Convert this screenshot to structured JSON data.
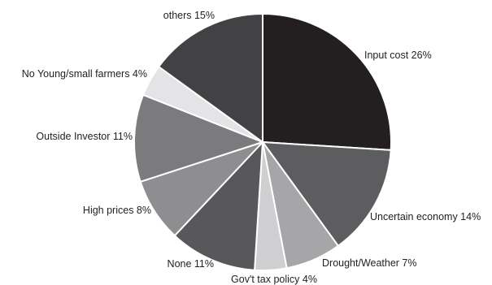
{
  "chart_data": {
    "type": "pie",
    "start_angle_deg": 0,
    "direction": "clockwise",
    "slice_border_color": "#ffffff",
    "slices": [
      {
        "label": "Input cost 26%",
        "value": 26,
        "color": "#231f20"
      },
      {
        "label": "Uncertain economy 14%",
        "value": 14,
        "color": "#5d5d5f"
      },
      {
        "label": "Drought/Weather 7%",
        "value": 7,
        "color": "#a6a6a8"
      },
      {
        "label": "Gov't tax policy 4%",
        "value": 4,
        "color": "#cfcfd1"
      },
      {
        "label": "None 11%",
        "value": 11,
        "color": "#58585a"
      },
      {
        "label": "High prices 8%",
        "value": 8,
        "color": "#8e8e90"
      },
      {
        "label": "Outside Investor 11%",
        "value": 11,
        "color": "#7b7b7d"
      },
      {
        "label": "No Young/small farmers 4%",
        "value": 4,
        "color": "#e4e4e6"
      },
      {
        "label": "others 15%",
        "value": 15,
        "color": "#424244"
      }
    ]
  }
}
